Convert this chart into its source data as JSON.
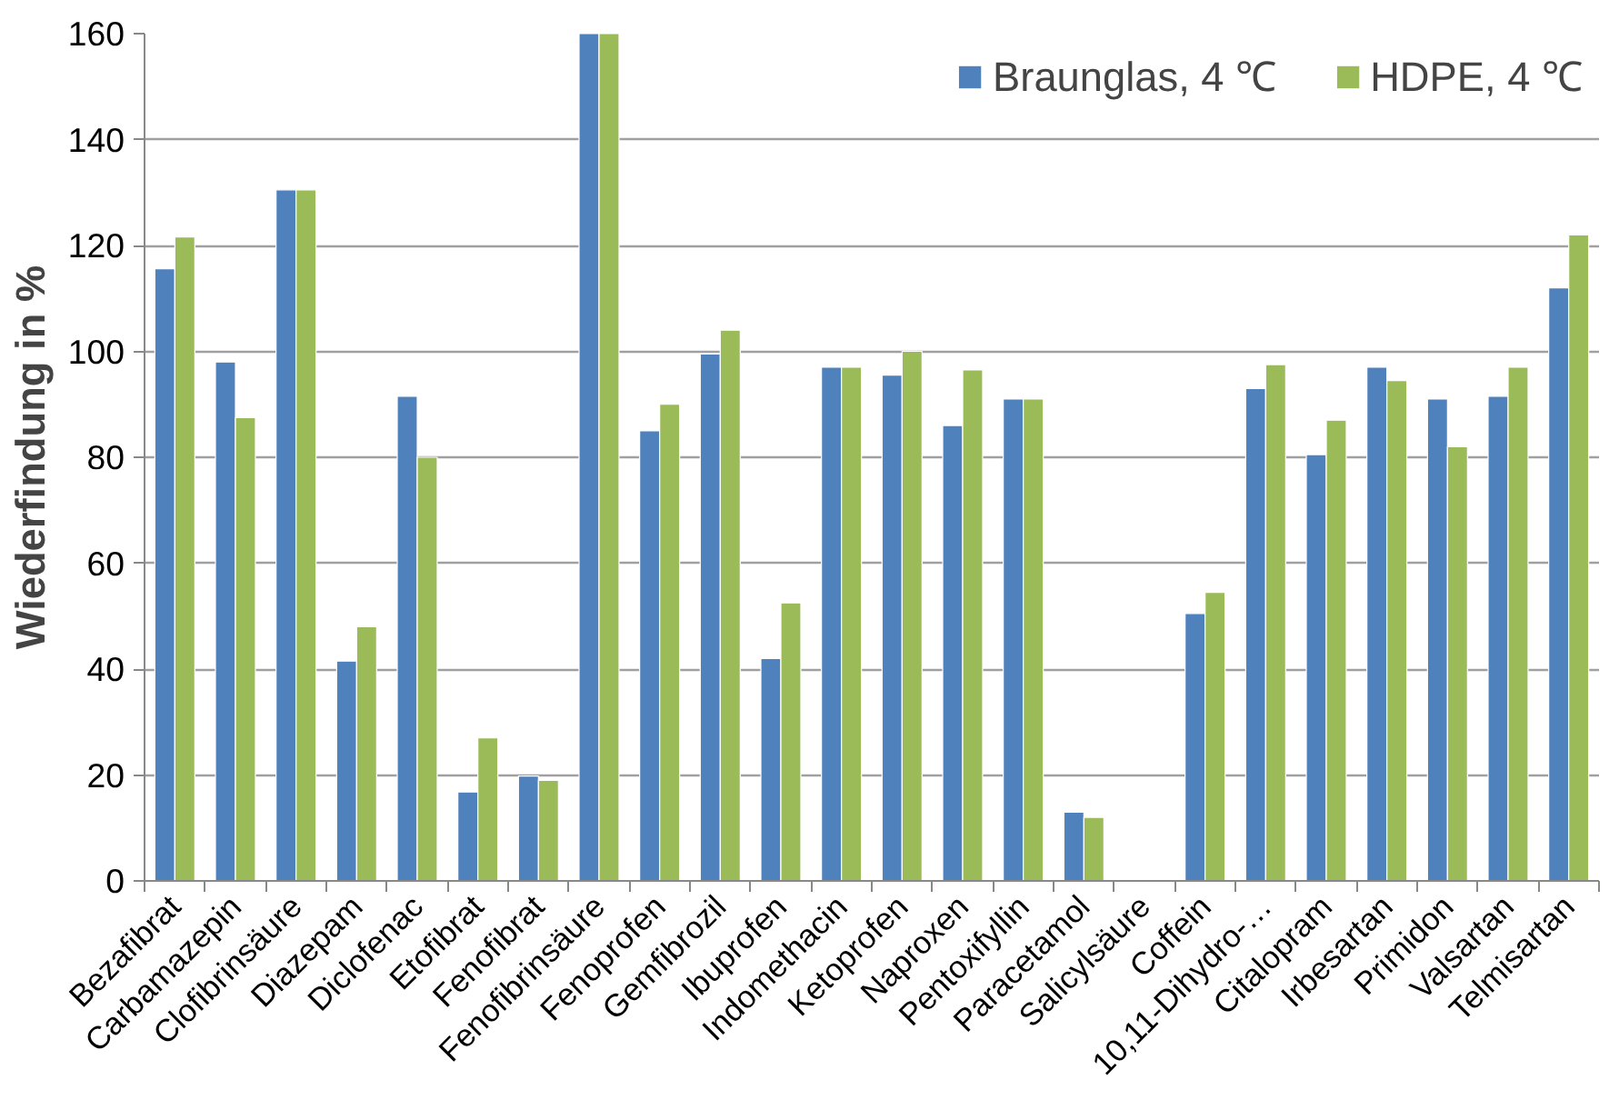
{
  "chart_data": {
    "type": "bar",
    "ylabel": "Wiederfindung in %",
    "categories": [
      "Bezafibrat",
      "Carbamazepin",
      "Clofibrinsäure",
      "Diazepam",
      "Diclofenac",
      "Etofibrat",
      "Fenofibrat",
      "Fenofibrinsäure",
      "Fenoprofen",
      "Gemfibrozil",
      "Ibuprofen",
      "Indomethacin",
      "Ketoprofen",
      "Naproxen",
      "Pentoxifyllin",
      "Paracetamol",
      "Salicylsäure",
      "Coffein",
      "10,11-Dihydro-…",
      "Citalopram",
      "Irbesartan",
      "Primidon",
      "Valsartan",
      "Telmisartan"
    ],
    "series": [
      {
        "name": "Braunglas, 4 ℃",
        "color": "#4f81bd",
        "values": [
          115.6,
          98,
          130.5,
          41.5,
          91.5,
          16.8,
          19.8,
          160,
          85,
          99.5,
          42,
          97,
          95.5,
          86,
          91,
          13,
          null,
          50.5,
          93,
          80.5,
          97,
          91,
          91.5,
          112
        ]
      },
      {
        "name": "HDPE, 4 ℃",
        "color": "#9bbb59",
        "values": [
          121.6,
          87.5,
          130.5,
          48,
          80,
          27,
          19,
          160,
          90,
          104,
          52.5,
          97,
          100,
          96.5,
          91,
          12,
          null,
          54.5,
          97.5,
          87,
          94.5,
          82,
          97,
          122
        ]
      }
    ],
    "ylim": [
      0,
      160
    ],
    "yticks": [
      0,
      20,
      40,
      60,
      80,
      100,
      120,
      140,
      160
    ],
    "grid": "y",
    "legend": "top right"
  }
}
